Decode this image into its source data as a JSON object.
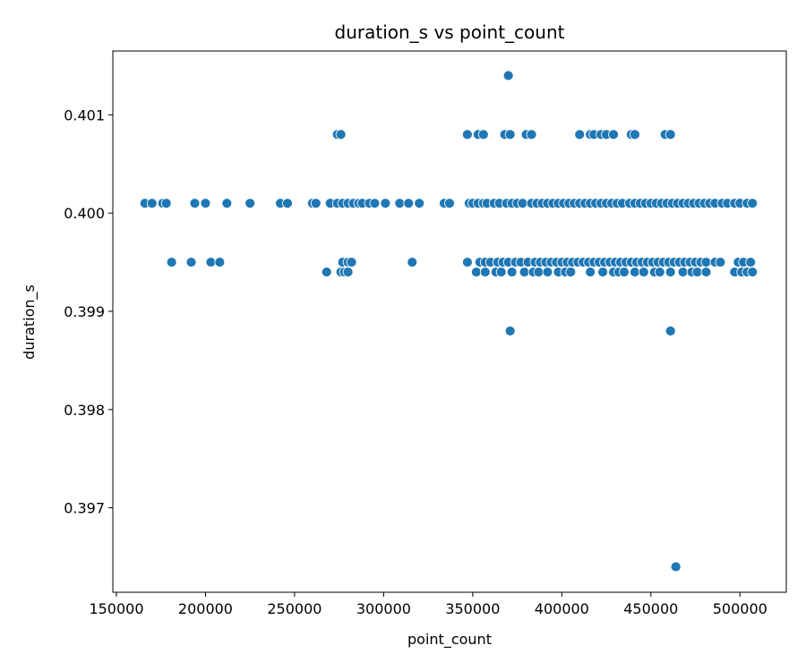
{
  "chart_data": {
    "type": "scatter",
    "title": "duration_s vs point_count",
    "xlabel": "point_count",
    "ylabel": "duration_s",
    "xlim": [
      148000,
      526000
    ],
    "ylim": [
      0.39614,
      0.40165
    ],
    "xticks": [
      150000,
      200000,
      250000,
      300000,
      350000,
      400000,
      450000,
      500000
    ],
    "xtick_labels": [
      "150000",
      "200000",
      "250000",
      "300000",
      "350000",
      "400000",
      "450000",
      "500000"
    ],
    "yticks": [
      0.397,
      0.398,
      0.399,
      0.4,
      0.401
    ],
    "ytick_labels": [
      "0.397",
      "0.398",
      "0.399",
      "0.400",
      "0.401"
    ],
    "grid": false,
    "marker_color": "#1f77b4",
    "series": [
      {
        "points": [
          [
            166000,
            0.4001
          ],
          [
            170000,
            0.4001
          ],
          [
            176000,
            0.4001
          ],
          [
            178000,
            0.4001
          ],
          [
            194000,
            0.4001
          ],
          [
            200000,
            0.4001
          ],
          [
            212000,
            0.4001
          ],
          [
            225000,
            0.4001
          ],
          [
            242000,
            0.4001
          ],
          [
            246000,
            0.4001
          ],
          [
            260000,
            0.4001
          ],
          [
            262000,
            0.4001
          ],
          [
            270000,
            0.4001
          ],
          [
            274000,
            0.4001
          ],
          [
            277000,
            0.4001
          ],
          [
            280000,
            0.4001
          ],
          [
            283000,
            0.4001
          ],
          [
            286000,
            0.4001
          ],
          [
            288000,
            0.4001
          ],
          [
            292000,
            0.4001
          ],
          [
            295000,
            0.4001
          ],
          [
            301000,
            0.4001
          ],
          [
            309000,
            0.4001
          ],
          [
            314000,
            0.4001
          ],
          [
            320000,
            0.4001
          ],
          [
            334000,
            0.4001
          ],
          [
            337000,
            0.4001
          ],
          [
            348000,
            0.4001
          ],
          [
            350000,
            0.4001
          ],
          [
            353000,
            0.4001
          ],
          [
            356000,
            0.4001
          ],
          [
            358000,
            0.4001
          ],
          [
            362000,
            0.4001
          ],
          [
            365000,
            0.4001
          ],
          [
            369000,
            0.4001
          ],
          [
            372000,
            0.4001
          ],
          [
            375000,
            0.4001
          ],
          [
            378000,
            0.4001
          ],
          [
            383000,
            0.4001
          ],
          [
            386000,
            0.4001
          ],
          [
            389000,
            0.4001
          ],
          [
            392000,
            0.4001
          ],
          [
            395000,
            0.4001
          ],
          [
            398000,
            0.4001
          ],
          [
            401000,
            0.4001
          ],
          [
            404000,
            0.4001
          ],
          [
            407000,
            0.4001
          ],
          [
            410000,
            0.4001
          ],
          [
            413000,
            0.4001
          ],
          [
            416000,
            0.4001
          ],
          [
            419000,
            0.4001
          ],
          [
            422000,
            0.4001
          ],
          [
            425000,
            0.4001
          ],
          [
            428000,
            0.4001
          ],
          [
            431000,
            0.4001
          ],
          [
            434000,
            0.4001
          ],
          [
            438000,
            0.4001
          ],
          [
            441000,
            0.4001
          ],
          [
            444000,
            0.4001
          ],
          [
            447000,
            0.4001
          ],
          [
            450000,
            0.4001
          ],
          [
            453000,
            0.4001
          ],
          [
            456000,
            0.4001
          ],
          [
            459000,
            0.4001
          ],
          [
            462000,
            0.4001
          ],
          [
            465000,
            0.4001
          ],
          [
            468000,
            0.4001
          ],
          [
            471000,
            0.4001
          ],
          [
            474000,
            0.4001
          ],
          [
            477000,
            0.4001
          ],
          [
            480000,
            0.4001
          ],
          [
            483000,
            0.4001
          ],
          [
            486000,
            0.4001
          ],
          [
            490000,
            0.4001
          ],
          [
            493000,
            0.4001
          ],
          [
            497000,
            0.4001
          ],
          [
            500000,
            0.4001
          ],
          [
            504000,
            0.4001
          ],
          [
            507000,
            0.4001
          ],
          [
            181000,
            0.3995
          ],
          [
            192000,
            0.3995
          ],
          [
            203000,
            0.3995
          ],
          [
            208000,
            0.3995
          ],
          [
            277000,
            0.3995
          ],
          [
            280000,
            0.3995
          ],
          [
            282000,
            0.3995
          ],
          [
            316000,
            0.3995
          ],
          [
            347000,
            0.3995
          ],
          [
            354000,
            0.3995
          ],
          [
            357000,
            0.3995
          ],
          [
            360000,
            0.3995
          ],
          [
            364000,
            0.3995
          ],
          [
            367000,
            0.3995
          ],
          [
            370000,
            0.3995
          ],
          [
            374000,
            0.3995
          ],
          [
            377000,
            0.3995
          ],
          [
            381000,
            0.3995
          ],
          [
            385000,
            0.3995
          ],
          [
            388000,
            0.3995
          ],
          [
            391000,
            0.3995
          ],
          [
            394000,
            0.3995
          ],
          [
            397000,
            0.3995
          ],
          [
            400000,
            0.3995
          ],
          [
            403000,
            0.3995
          ],
          [
            406000,
            0.3995
          ],
          [
            409000,
            0.3995
          ],
          [
            412000,
            0.3995
          ],
          [
            415000,
            0.3995
          ],
          [
            418000,
            0.3995
          ],
          [
            421000,
            0.3995
          ],
          [
            424000,
            0.3995
          ],
          [
            427000,
            0.3995
          ],
          [
            430000,
            0.3995
          ],
          [
            433000,
            0.3995
          ],
          [
            436000,
            0.3995
          ],
          [
            439000,
            0.3995
          ],
          [
            442000,
            0.3995
          ],
          [
            445000,
            0.3995
          ],
          [
            448000,
            0.3995
          ],
          [
            451000,
            0.3995
          ],
          [
            454000,
            0.3995
          ],
          [
            457000,
            0.3995
          ],
          [
            460000,
            0.3995
          ],
          [
            463000,
            0.3995
          ],
          [
            466000,
            0.3995
          ],
          [
            469000,
            0.3995
          ],
          [
            472000,
            0.3995
          ],
          [
            475000,
            0.3995
          ],
          [
            478000,
            0.3995
          ],
          [
            481000,
            0.3995
          ],
          [
            486000,
            0.3995
          ],
          [
            489000,
            0.3995
          ],
          [
            499000,
            0.3995
          ],
          [
            502000,
            0.3995
          ],
          [
            506000,
            0.3995
          ],
          [
            268000,
            0.3994
          ],
          [
            276000,
            0.3994
          ],
          [
            278000,
            0.3994
          ],
          [
            280000,
            0.3994
          ],
          [
            352000,
            0.3994
          ],
          [
            357000,
            0.3994
          ],
          [
            363000,
            0.3994
          ],
          [
            366000,
            0.3994
          ],
          [
            372000,
            0.3994
          ],
          [
            379000,
            0.3994
          ],
          [
            384000,
            0.3994
          ],
          [
            387000,
            0.3994
          ],
          [
            392000,
            0.3994
          ],
          [
            398000,
            0.3994
          ],
          [
            402000,
            0.3994
          ],
          [
            405000,
            0.3994
          ],
          [
            416000,
            0.3994
          ],
          [
            423000,
            0.3994
          ],
          [
            429000,
            0.3994
          ],
          [
            432000,
            0.3994
          ],
          [
            435000,
            0.3994
          ],
          [
            441000,
            0.3994
          ],
          [
            446000,
            0.3994
          ],
          [
            452000,
            0.3994
          ],
          [
            455000,
            0.3994
          ],
          [
            461000,
            0.3994
          ],
          [
            468000,
            0.3994
          ],
          [
            473000,
            0.3994
          ],
          [
            476000,
            0.3994
          ],
          [
            481000,
            0.3994
          ],
          [
            497000,
            0.3994
          ],
          [
            501000,
            0.3994
          ],
          [
            504000,
            0.3994
          ],
          [
            507000,
            0.3994
          ],
          [
            274000,
            0.4008
          ],
          [
            276000,
            0.4008
          ],
          [
            347000,
            0.4008
          ],
          [
            353000,
            0.4008
          ],
          [
            356000,
            0.4008
          ],
          [
            368000,
            0.4008
          ],
          [
            371000,
            0.4008
          ],
          [
            380000,
            0.4008
          ],
          [
            383000,
            0.4008
          ],
          [
            410000,
            0.4008
          ],
          [
            416000,
            0.4008
          ],
          [
            418000,
            0.4008
          ],
          [
            422000,
            0.4008
          ],
          [
            425000,
            0.4008
          ],
          [
            429000,
            0.4008
          ],
          [
            439000,
            0.4008
          ],
          [
            441000,
            0.4008
          ],
          [
            458000,
            0.4008
          ],
          [
            461000,
            0.4008
          ],
          [
            370000,
            0.4014
          ],
          [
            371000,
            0.3988
          ],
          [
            461000,
            0.3988
          ],
          [
            464000,
            0.3964
          ]
        ]
      }
    ]
  }
}
